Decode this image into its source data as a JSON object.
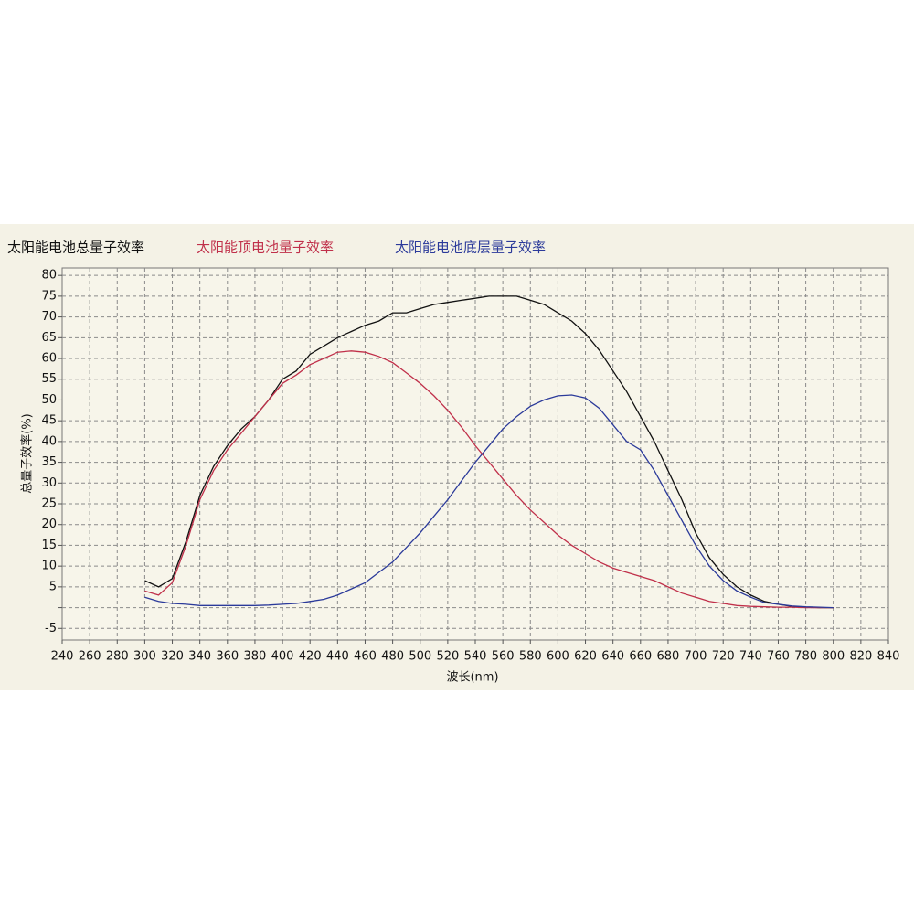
{
  "chart_data": {
    "type": "line",
    "series": [
      {
        "name": "太阳能电池总量子效率",
        "color": "#111111",
        "values": [
          6.5,
          5,
          7,
          16,
          27,
          34,
          39,
          43,
          46,
          50,
          55,
          57,
          61,
          63,
          65,
          66.5,
          68,
          69,
          71,
          71,
          72,
          73,
          73.5,
          74,
          74.5,
          75,
          75,
          75,
          74,
          73,
          71,
          69,
          66,
          62,
          57,
          52,
          46,
          40,
          33,
          26,
          18,
          12,
          8,
          5,
          3,
          1.5,
          0.8,
          0.3,
          0.1,
          0,
          0
        ]
      },
      {
        "name": "太阳能顶电池量子效率",
        "color": "#c0304a",
        "values": [
          4,
          3,
          6,
          15,
          26,
          33,
          38,
          42,
          46,
          50,
          54,
          56,
          58.5,
          60,
          61.5,
          61.8,
          61.5,
          60.5,
          59,
          56.5,
          54,
          51,
          47.5,
          43.5,
          39,
          35,
          31,
          27,
          23.5,
          20.5,
          17.5,
          15,
          13,
          11,
          9.5,
          8.5,
          7.5,
          6.5,
          5,
          3.5,
          2.5,
          1.5,
          1,
          0.5,
          0.3,
          0.2,
          0.1,
          0.1,
          0,
          0,
          0
        ]
      },
      {
        "name": "太阳能电池底层量子效率",
        "color": "#2b3a9a",
        "values": [
          2.5,
          1.5,
          1,
          0.8,
          0.5,
          0.5,
          0.5,
          0.5,
          0.5,
          0.6,
          0.8,
          1,
          1.5,
          2,
          3,
          4.5,
          6,
          8.5,
          11,
          14.5,
          18,
          22,
          26,
          30.5,
          35,
          39,
          43,
          46,
          48.5,
          50,
          51,
          51.2,
          50.5,
          48,
          44,
          40,
          38,
          33,
          27,
          21,
          15,
          10,
          6.5,
          4,
          2.5,
          1.2,
          0.8,
          0.4,
          0.2,
          0.1,
          0
        ]
      }
    ],
    "x": [
      300,
      310,
      320,
      330,
      340,
      350,
      360,
      370,
      380,
      390,
      400,
      410,
      420,
      430,
      440,
      450,
      460,
      470,
      480,
      490,
      500,
      510,
      520,
      530,
      540,
      550,
      560,
      570,
      580,
      590,
      600,
      610,
      620,
      630,
      640,
      650,
      660,
      670,
      680,
      690,
      700,
      710,
      720,
      730,
      740,
      750,
      760,
      770,
      780,
      790,
      800
    ],
    "xlabel": "波长(nm)",
    "ylabel": "总量子效率(%)",
    "xlim": [
      240,
      840
    ],
    "xticks": [
      240,
      260,
      280,
      300,
      320,
      340,
      360,
      380,
      400,
      420,
      440,
      460,
      480,
      500,
      520,
      540,
      560,
      580,
      600,
      620,
      640,
      660,
      680,
      700,
      720,
      740,
      760,
      780,
      800,
      820,
      840
    ],
    "ylim": [
      -7.8,
      81.8
    ],
    "yticks": [
      -5,
      {
        "value": 0,
        "label": null
      },
      5,
      10,
      15,
      20,
      25,
      30,
      35,
      40,
      45,
      50,
      55,
      60,
      65,
      70,
      75,
      80
    ],
    "grid": true,
    "legend": "top"
  }
}
